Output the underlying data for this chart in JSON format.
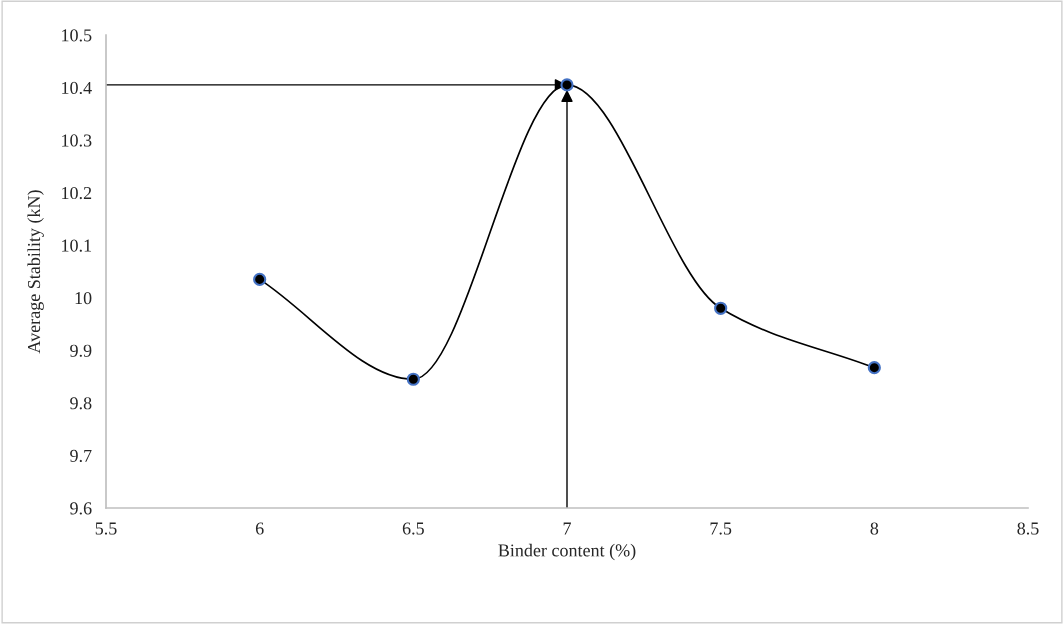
{
  "chart_data": {
    "type": "line",
    "xlabel": "Binder content (%)",
    "ylabel": "Average Stability (kN)",
    "x": [
      6,
      6.5,
      7,
      7.5,
      8
    ],
    "series": [
      {
        "color": "#000000",
        "values": [
          10.035,
          9.845,
          10.405,
          9.98,
          9.867
        ]
      }
    ],
    "xlim": [
      5.5,
      8.5
    ],
    "xticks": [
      5.5,
      6,
      6.5,
      7,
      7.5,
      8,
      8.5
    ],
    "ylim": [
      9.6,
      10.5
    ],
    "yticks": [
      9.6,
      9.7,
      9.8,
      9.9,
      {
        "value": 10,
        "label": "10"
      },
      10.1,
      10.2,
      10.3,
      10.4,
      10.5
    ],
    "ref_lines": [
      {
        "axis": "y",
        "value": 10.405
      },
      {
        "axis": "x",
        "value": 7
      }
    ],
    "marker": "circle",
    "line_style": "solid",
    "grid": false,
    "legend": false
  }
}
